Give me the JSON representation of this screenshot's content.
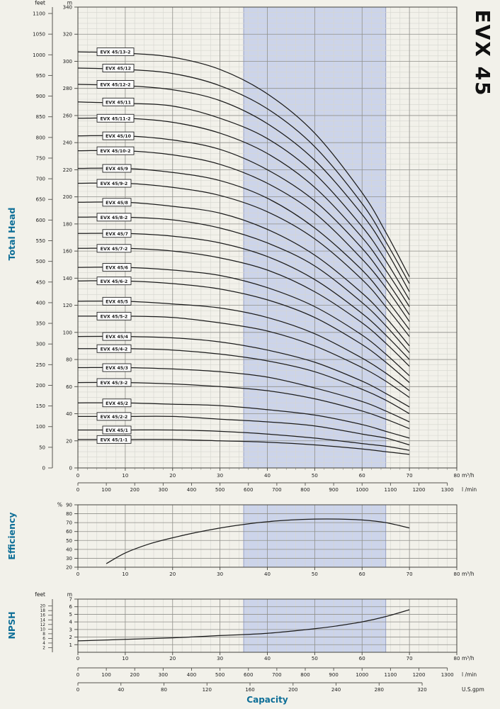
{
  "labels": {
    "title": "EVX 45",
    "total_head": "Total Head",
    "efficiency": "Efficiency",
    "npsh": "NPSH",
    "capacity": "Capacity"
  },
  "colors": {
    "accent": "#0d6e97",
    "band": "#ccd4ea",
    "band_edge": "#9aa3c4",
    "curve": "#1c1c1c",
    "grid_major": "#90908a",
    "grid_minor": "#d6d6cf",
    "frame": "#44443f",
    "page_bg": "#f2f1ea",
    "label_box_bg": "#ffffff",
    "label_box_border": "#222222"
  },
  "flow_axis": {
    "ticks_m3h": [
      0,
      10,
      20,
      30,
      40,
      50,
      60,
      70,
      80
    ],
    "unit": "m³/h"
  },
  "lmin_axis": {
    "ticks": [
      0,
      100,
      200,
      300,
      400,
      500,
      600,
      700,
      800,
      900,
      1000,
      1100,
      1200,
      1300
    ],
    "unit": "l /min"
  },
  "gpm_axis": {
    "ticks": [
      0,
      40,
      80,
      120,
      160,
      200,
      240,
      280,
      320
    ],
    "unit": "U.S.gpm"
  },
  "operating_band_m3h": [
    35,
    65
  ],
  "chart_data": [
    {
      "id": "total_head",
      "type": "line",
      "ylabel": "Total Head",
      "y_units": [
        "feet",
        "m"
      ],
      "y_feet_ticks": [
        0,
        50,
        100,
        150,
        200,
        250,
        300,
        350,
        400,
        450,
        500,
        550,
        600,
        650,
        700,
        750,
        800,
        850,
        900,
        950,
        1000,
        1050,
        1100
      ],
      "y_m_ticks": [
        0,
        20,
        40,
        60,
        80,
        100,
        120,
        140,
        160,
        180,
        200,
        220,
        240,
        260,
        280,
        300,
        320,
        340
      ],
      "ylim_m": [
        0,
        340
      ],
      "xlim_m3h": [
        0,
        80
      ],
      "x_m3h": [
        0,
        10,
        20,
        30,
        40,
        50,
        60,
        65,
        70
      ],
      "series": [
        {
          "name": "EVX 45/13-2",
          "values": [
            307,
            306,
            303,
            294,
            276,
            247,
            203,
            174,
            141
          ]
        },
        {
          "name": "EVX 45/12",
          "values": [
            295,
            294,
            291,
            282,
            265,
            237,
            195,
            167,
            136
          ]
        },
        {
          "name": "EVX 45/12-2",
          "values": [
            283,
            282,
            279,
            271,
            254,
            227,
            187,
            161,
            130
          ]
        },
        {
          "name": "EVX 45/11",
          "values": [
            270,
            269,
            267,
            258,
            243,
            217,
            178,
            153,
            124
          ]
        },
        {
          "name": "EVX 45/11-2",
          "values": [
            258,
            258,
            255,
            247,
            232,
            207,
            170,
            146,
            119
          ]
        },
        {
          "name": "EVX 45/10",
          "values": [
            245,
            245,
            242,
            235,
            220,
            197,
            162,
            139,
            113
          ]
        },
        {
          "name": "EVX 45/10-2",
          "values": [
            234,
            234,
            231,
            224,
            210,
            188,
            154,
            133,
            108
          ]
        },
        {
          "name": "EVX 45/9",
          "values": [
            221,
            221,
            218,
            212,
            199,
            177,
            146,
            125,
            102
          ]
        },
        {
          "name": "EVX 45/9-2",
          "values": [
            210,
            210,
            207,
            201,
            189,
            169,
            139,
            119,
            97
          ]
        },
        {
          "name": "EVX 45/8",
          "values": [
            196,
            196,
            193,
            188,
            176,
            157,
            129,
            111,
            90
          ]
        },
        {
          "name": "EVX 45/8-2",
          "values": [
            185,
            185,
            183,
            177,
            166,
            149,
            122,
            105,
            85
          ]
        },
        {
          "name": "EVX 45/7",
          "values": [
            173,
            173,
            171,
            166,
            156,
            139,
            114,
            98,
            80
          ]
        },
        {
          "name": "EVX 45/7-2",
          "values": [
            162,
            162,
            160,
            155,
            146,
            130,
            107,
            92,
            75
          ]
        },
        {
          "name": "EVX 45/6",
          "values": [
            148,
            148,
            146,
            142,
            133,
            119,
            98,
            84,
            68
          ]
        },
        {
          "name": "EVX 45/6-2",
          "values": [
            138,
            138,
            136,
            132,
            124,
            111,
            91,
            78,
            63
          ]
        },
        {
          "name": "EVX 45/5",
          "values": [
            123,
            123,
            121,
            118,
            111,
            99,
            81,
            70,
            57
          ]
        },
        {
          "name": "EVX 45/5-2",
          "values": [
            112,
            112,
            111,
            107,
            101,
            90,
            74,
            64,
            52
          ]
        },
        {
          "name": "EVX 45/4",
          "values": [
            97,
            97,
            96,
            93,
            87,
            78,
            64,
            55,
            45
          ]
        },
        {
          "name": "EVX 45/4-2",
          "values": [
            88,
            88,
            87,
            84,
            79,
            71,
            58,
            50,
            40
          ]
        },
        {
          "name": "EVX 45/3",
          "values": [
            74,
            74,
            73,
            71,
            67,
            59,
            49,
            42,
            34
          ]
        },
        {
          "name": "EVX 45/3-2",
          "values": [
            63,
            63,
            62,
            60,
            57,
            51,
            42,
            36,
            29
          ]
        },
        {
          "name": "EVX 45/2",
          "values": [
            48,
            48,
            47,
            46,
            43,
            39,
            32,
            27,
            22
          ]
        },
        {
          "name": "EVX 45/2-2",
          "values": [
            38,
            38,
            38,
            36,
            34,
            31,
            25,
            22,
            17
          ]
        },
        {
          "name": "EVX 45/1",
          "values": [
            28,
            28,
            28,
            27,
            25,
            22,
            18,
            16,
            13
          ]
        },
        {
          "name": "EVX 45/1-1",
          "values": [
            21,
            21,
            21,
            20,
            19,
            17,
            14,
            12,
            10
          ]
        }
      ]
    },
    {
      "id": "efficiency",
      "type": "line",
      "ylabel": "Efficiency",
      "y_unit": "%",
      "y_ticks": [
        20,
        30,
        40,
        50,
        60,
        70,
        80,
        90
      ],
      "ylim": [
        20,
        90
      ],
      "points_m3h_pct": [
        [
          6,
          24
        ],
        [
          10,
          36
        ],
        [
          15,
          46
        ],
        [
          20,
          53
        ],
        [
          25,
          59
        ],
        [
          30,
          64
        ],
        [
          35,
          68
        ],
        [
          40,
          71
        ],
        [
          45,
          73
        ],
        [
          50,
          74
        ],
        [
          55,
          74
        ],
        [
          60,
          73
        ],
        [
          65,
          70
        ],
        [
          70,
          64
        ]
      ]
    },
    {
      "id": "npsh",
      "type": "line",
      "ylabel": "NPSH",
      "y_units": [
        "feet",
        "m"
      ],
      "y_m_ticks": [
        1,
        2,
        3,
        4,
        5,
        6,
        7
      ],
      "y_feet_ticks": [
        2,
        4,
        6,
        8,
        10,
        12,
        14,
        16,
        18,
        20
      ],
      "ylim_m": [
        0,
        7
      ],
      "points_m3h_m": [
        [
          0,
          1.5
        ],
        [
          10,
          1.7
        ],
        [
          20,
          1.9
        ],
        [
          30,
          2.2
        ],
        [
          40,
          2.5
        ],
        [
          50,
          3.1
        ],
        [
          55,
          3.5
        ],
        [
          60,
          4.0
        ],
        [
          65,
          4.7
        ],
        [
          70,
          5.6
        ]
      ]
    }
  ]
}
